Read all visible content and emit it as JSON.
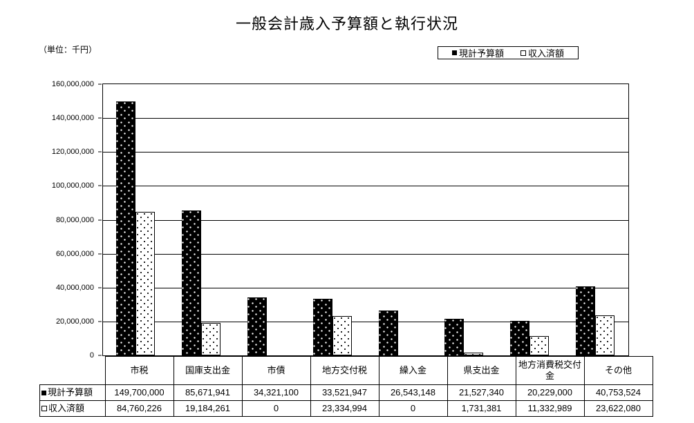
{
  "title": "一般会計歳入予算額と執行状況",
  "unit_label": "（単位：千円）",
  "legend": {
    "items": [
      {
        "label": "現計予算額",
        "marker": "filled-square"
      },
      {
        "label": "収入済額",
        "marker": "open-square"
      }
    ]
  },
  "chart_data": {
    "type": "bar",
    "title": "一般会計歳入予算額と執行状況",
    "unit": "千円",
    "categories": [
      "市税",
      "国庫支出金",
      "市債",
      "地方交付税",
      "繰入金",
      "県支出金",
      "地方消費税交付金",
      "その他"
    ],
    "series": [
      {
        "name": "現計予算額",
        "marker": "filled-square",
        "fill": "black-with-white-dots",
        "values": [
          149700000,
          85671941,
          34321100,
          33521947,
          26543148,
          21527340,
          20229000,
          40753524
        ]
      },
      {
        "name": "収入済額",
        "marker": "open-square",
        "fill": "white-with-black-dots",
        "values": [
          84760226,
          19184261,
          0,
          23334994,
          0,
          1731381,
          11332989,
          23622080
        ]
      }
    ],
    "ylim": [
      0,
      160000000
    ],
    "ytick_step": 20000000,
    "grid": true,
    "legend_position": "top-right"
  }
}
